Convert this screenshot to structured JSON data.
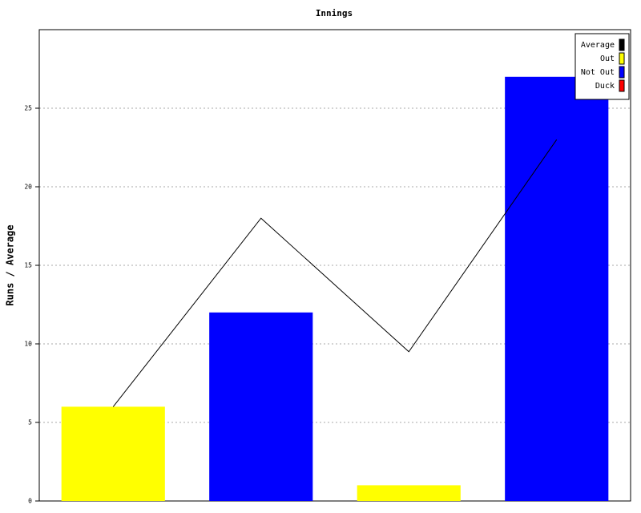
{
  "chart_data": {
    "type": "bar",
    "title": "Innings",
    "y_label": "Runs / Average",
    "categories": [
      null,
      null,
      null,
      null
    ],
    "series": [
      {
        "name": "Average",
        "color": "#000000",
        "type": "line",
        "values": [
          6,
          18,
          9.5,
          23
        ]
      },
      {
        "name": "Out",
        "color": "#ffff00",
        "type": "bar",
        "values": [
          6,
          null,
          1,
          null
        ]
      },
      {
        "name": "Not Out",
        "color": "#0000ff",
        "type": "bar",
        "values": [
          null,
          12,
          null,
          27
        ]
      },
      {
        "name": "Duck",
        "color": "#ff0000",
        "type": "bar",
        "values": [
          null,
          null,
          null,
          null
        ]
      }
    ],
    "ylim": [
      0,
      30
    ],
    "yticks": [
      0,
      5,
      10,
      15,
      20,
      25
    ],
    "grid": true,
    "legend": "top-right"
  }
}
